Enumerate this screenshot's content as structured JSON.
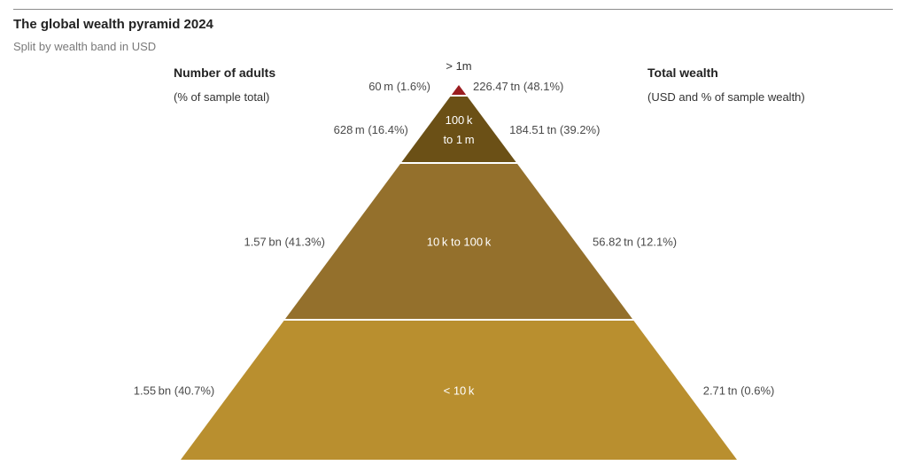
{
  "title": "The global wealth pyramid 2024",
  "subtitle": "Split by wealth band in USD",
  "left_header": {
    "title": "Number of adults",
    "subtitle": "(% of sample total)"
  },
  "right_header": {
    "title": "Total wealth",
    "subtitle": "(USD and % of sample wealth)"
  },
  "chart_data": {
    "type": "pyramid",
    "title": "The global wealth pyramid 2024",
    "subtitle": "Split by wealth band in USD",
    "left_axis_label": "Number of adults (% of sample total)",
    "right_axis_label": "Total wealth (USD and % of sample wealth)",
    "bands": [
      {
        "label": "> 1m",
        "label_lines": [
          "> 1m"
        ],
        "adults_label": "60 m (1.6%)",
        "wealth_label": "226.47 tn (48.1%)",
        "adults_millions": 60,
        "adults_pct": 1.6,
        "wealth_trillions_usd": 226.47,
        "wealth_pct": 48.1,
        "color": "#9b1d20"
      },
      {
        "label": "100k to 1m",
        "label_lines": [
          "100 k",
          "to 1 m"
        ],
        "adults_label": "628 m (16.4%)",
        "wealth_label": "184.51 tn (39.2%)",
        "adults_millions": 628,
        "adults_pct": 16.4,
        "wealth_trillions_usd": 184.51,
        "wealth_pct": 39.2,
        "color": "#6b5016"
      },
      {
        "label": "10k to 100k",
        "label_lines": [
          "10 k to 100 k"
        ],
        "adults_label": "1.57 bn (41.3%)",
        "wealth_label": "56.82 tn (12.1%)",
        "adults_millions": 1570,
        "adults_pct": 41.3,
        "wealth_trillions_usd": 56.82,
        "wealth_pct": 12.1,
        "color": "#94702c"
      },
      {
        "label": "< 10k",
        "label_lines": [
          "< 10 k"
        ],
        "adults_label": "1.55 bn (40.7%)",
        "wealth_label": "2.71 tn (0.6%)",
        "adults_millions": 1550,
        "adults_pct": 40.7,
        "wealth_trillions_usd": 2.71,
        "wealth_pct": 0.6,
        "color": "#b98f2f"
      }
    ]
  }
}
